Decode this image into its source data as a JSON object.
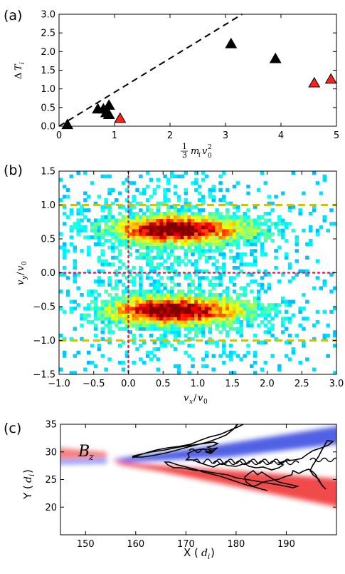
{
  "panels": {
    "a": {
      "label": "(a)"
    },
    "b": {
      "label": "(b)"
    },
    "c": {
      "label": "(c)",
      "field_label": "B",
      "field_sub": "z"
    }
  },
  "chart_data": [
    {
      "panel": "(a)",
      "type": "scatter",
      "xlabel": "⅓ m_i v_0^2",
      "ylabel": "ΔT_i",
      "xlim": [
        0,
        5
      ],
      "ylim": [
        0,
        3.0
      ],
      "xticks": [
        "0",
        "1",
        "2",
        "3",
        "4",
        "5"
      ],
      "yticks": [
        "0.0",
        "0.5",
        "1.0",
        "1.5",
        "2.0",
        "2.5",
        "3.0"
      ],
      "reference_line": {
        "style": "dashed",
        "color": "#000000",
        "x": [
          0,
          3.3
        ],
        "y": [
          0,
          3.0
        ]
      },
      "series": [
        {
          "color": "#000000",
          "marker": "triangle",
          "points": [
            [
              0.15,
              0.03
            ],
            [
              0.7,
              0.45
            ],
            [
              0.8,
              0.45
            ],
            [
              0.85,
              0.35
            ],
            [
              0.9,
              0.3
            ],
            [
              0.9,
              0.55
            ],
            [
              3.1,
              2.2
            ],
            [
              3.9,
              1.8
            ]
          ]
        },
        {
          "color": "#ff2020",
          "marker": "triangle",
          "points": [
            [
              1.1,
              0.2
            ],
            [
              4.6,
              1.15
            ],
            [
              4.9,
              1.25
            ]
          ]
        }
      ]
    },
    {
      "panel": "(b)",
      "type": "heatmap",
      "xlabel": "v_x/v_0",
      "ylabel": "v_y/v_0",
      "xlim": [
        -1.0,
        3.0
      ],
      "ylim": [
        -1.5,
        1.5
      ],
      "xticks": [
        "−1.0",
        "−0.5",
        "0.0",
        "0.5",
        "1.0",
        "1.5",
        "2.0",
        "2.5",
        "3.0"
      ],
      "yticks": [
        "−1.5",
        "−1.0",
        "−0.5",
        "0.0",
        "0.5",
        "1.0",
        "1.5"
      ],
      "colormap": "jet",
      "clusters": [
        {
          "vx_center": 0.6,
          "vy_center": 0.62,
          "vx_range": [
            -1.0,
            2.7
          ]
        },
        {
          "vx_center": 0.55,
          "vy_center": -0.58,
          "vx_range": [
            -1.0,
            2.7
          ]
        }
      ],
      "guide_lines": [
        {
          "orientation": "horizontal",
          "value": 1.0,
          "style": "dashed",
          "color": "#c8c21e"
        },
        {
          "orientation": "horizontal",
          "value": -1.0,
          "style": "dashed",
          "color": "#c8c21e"
        },
        {
          "orientation": "horizontal",
          "value": 0.0,
          "style": "dotted",
          "color": "#e0205a"
        },
        {
          "orientation": "vertical",
          "value": 0.0,
          "style": "dotted",
          "color": "#e0205a"
        }
      ]
    },
    {
      "panel": "(c)",
      "type": "heatmap",
      "xlabel": "X (d_i)",
      "ylabel": "Y (d_i)",
      "xlim": [
        145,
        200
      ],
      "ylim": [
        15,
        35
      ],
      "xticks": [
        "150",
        "160",
        "170",
        "180",
        "190"
      ],
      "yticks": [
        "20",
        "25",
        "30",
        "35"
      ],
      "colormap": "bwr",
      "field": "B_z",
      "trajectory_color": "#000000"
    }
  ]
}
